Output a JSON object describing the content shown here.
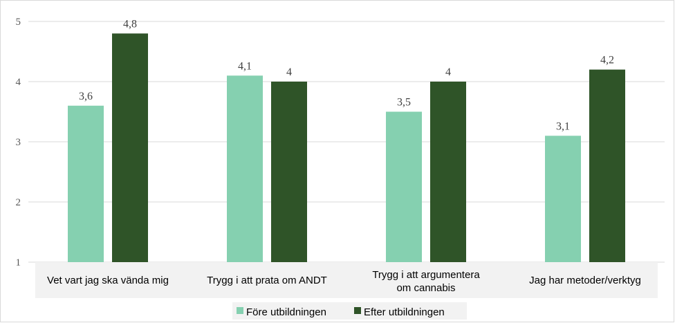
{
  "chart_data": {
    "type": "bar",
    "categories": [
      [
        "Vet vart jag ska vända mig"
      ],
      [
        "Trygg i att prata om ANDT"
      ],
      [
        "Trygg i att argumentera",
        "om cannabis"
      ],
      [
        "Jag har metoder/verktyg"
      ]
    ],
    "series": [
      {
        "name": "Före utbildningen",
        "color": "#85d0b0",
        "values": [
          3.6,
          4.1,
          3.5,
          3.1
        ],
        "labels": [
          "3,6",
          "4,1",
          "3,5",
          "3,1"
        ]
      },
      {
        "name": "Efter utbildningen",
        "color": "#2f5428",
        "values": [
          4.8,
          4.0,
          4.0,
          4.2
        ],
        "labels": [
          "4,8",
          "4",
          "4",
          "4,2"
        ]
      }
    ],
    "y_ticks": [
      1,
      2,
      3,
      4,
      5
    ],
    "ylim": [
      1,
      5
    ],
    "grid": true,
    "gridline_color": "#d9d9d9",
    "legend_position": "bottom",
    "title": "",
    "xlabel": "",
    "ylabel": ""
  }
}
